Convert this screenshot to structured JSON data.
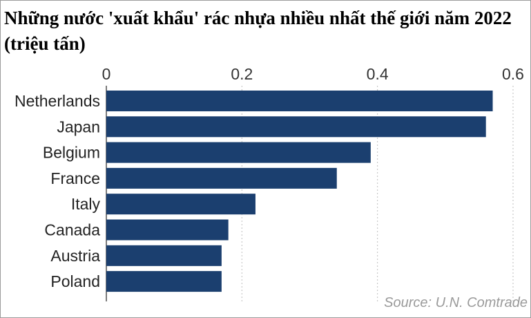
{
  "title": "Những nước 'xuất khẩu' rác nhựa nhiều nhất thế giới năm 2022 (triệu tấn)",
  "source": "Source: U.N. Comtrade",
  "colors": {
    "bar": "#1b3f6f",
    "grid": "#bdbdbd",
    "axis": "#333333"
  },
  "chart_data": {
    "type": "bar",
    "orientation": "horizontal",
    "categories": [
      "Netherlands",
      "Japan",
      "Belgium",
      "France",
      "Italy",
      "Canada",
      "Austria",
      "Poland"
    ],
    "values": [
      0.57,
      0.56,
      0.39,
      0.34,
      0.22,
      0.18,
      0.17,
      0.17
    ],
    "xticks": [
      "0",
      "0.2",
      "0.4",
      "0.6"
    ],
    "xlim": [
      0,
      0.6
    ],
    "grid": true,
    "xaxis_position": "top"
  }
}
